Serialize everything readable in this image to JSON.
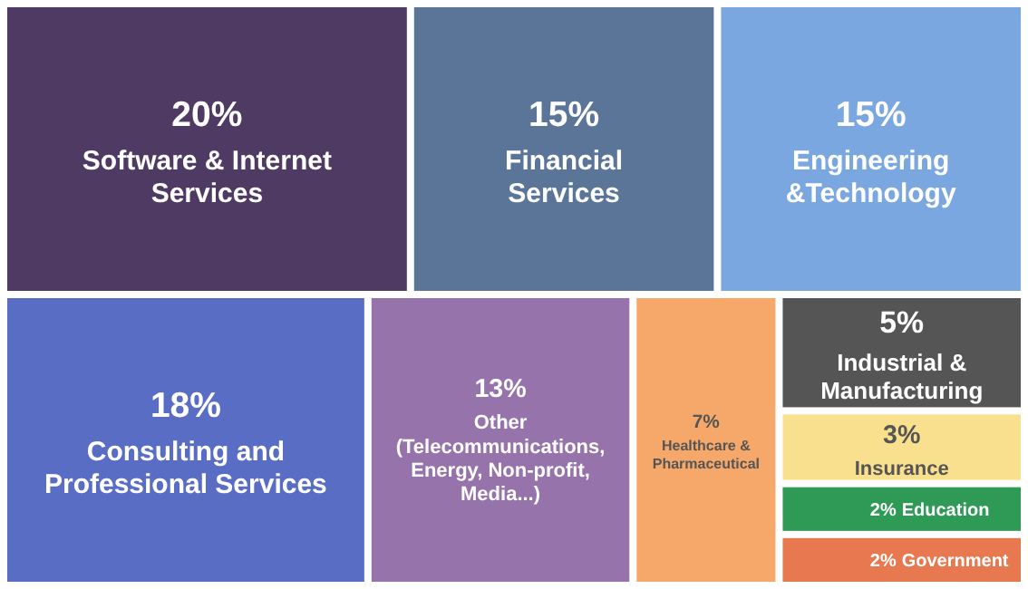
{
  "chart_data": {
    "type": "other",
    "value_labels": [
      "20%",
      "15%",
      "15%",
      "18%",
      "13%",
      "7%",
      "5%",
      "3%",
      "2%",
      "2%"
    ],
    "categories": [
      "Software & Internet Services",
      "Financial Services",
      "Engineering &Technology",
      "Consulting and Professional Services",
      "Other (Telecommunications, Energy, Non-profit, Media...)",
      "Healthcare & Pharmaceutical",
      "Industrial & Manufacturing",
      "Insurance",
      "Education",
      "Government"
    ],
    "values": [
      20,
      15,
      15,
      18,
      13,
      7,
      5,
      3,
      2,
      2
    ],
    "colors": [
      "#4f3a63",
      "#5a7598",
      "#7ba7e0",
      "#5a6dc4",
      "#9673aa",
      "#f5a86a",
      "#555555",
      "#f9e08e",
      "#2e9a55",
      "#e8784f"
    ]
  }
}
